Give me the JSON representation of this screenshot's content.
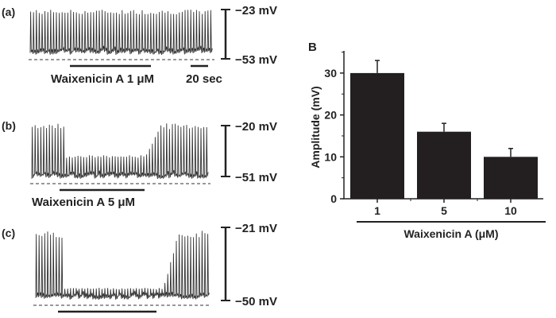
{
  "panels": [
    {
      "label": "(a)",
      "top_mV": "−23 mV",
      "bottom_mV": "−53 mV",
      "drug": "Waixenicin A 1 μM",
      "time_scale": "20 sec",
      "suppression": 0.0
    },
    {
      "label": "(b)",
      "top_mV": "−20 mV",
      "bottom_mV": "−51 mV",
      "drug": "Waixenicin A 5 μM",
      "suppression": 0.55
    },
    {
      "label": "(c)",
      "top_mV": "−21 mV",
      "bottom_mV": "−50 mV",
      "drug": "",
      "suppression": 0.8
    }
  ],
  "chart_data": {
    "type": "bar",
    "panel_label": "B",
    "categories": [
      "1",
      "5",
      "10"
    ],
    "values": [
      30,
      16,
      10
    ],
    "errors": [
      3,
      2,
      2
    ],
    "ylabel": "Amplitude (mV)",
    "xlabel": "Waixenicin A (μM)",
    "ylim": [
      0,
      35
    ],
    "yticks": [
      0,
      10,
      20,
      30
    ],
    "color": "#231f20"
  }
}
